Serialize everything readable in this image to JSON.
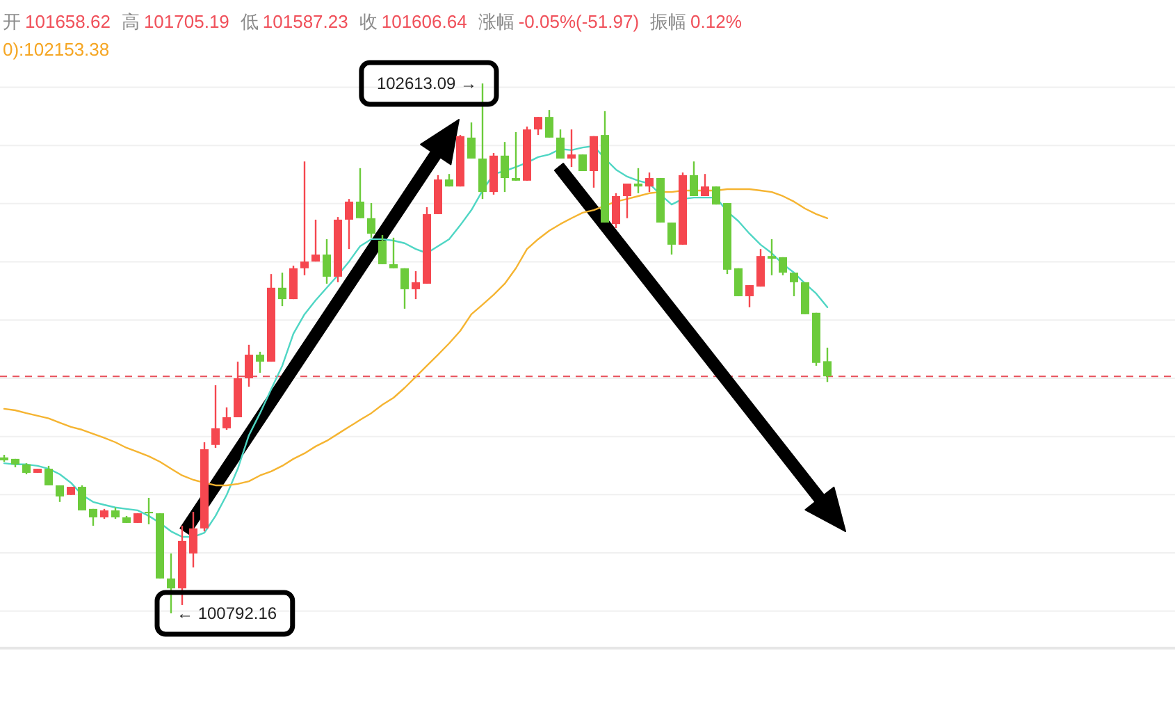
{
  "chart_data": {
    "type": "candlestick",
    "categories": [
      null,
      null,
      null,
      null,
      null,
      null,
      null,
      null,
      null,
      null,
      null,
      null,
      null,
      null,
      null,
      null,
      null,
      null,
      null,
      null,
      null,
      null,
      null,
      null,
      null,
      null,
      null,
      null,
      null,
      null,
      null,
      null,
      null,
      null,
      null,
      null,
      null,
      null,
      null,
      null,
      null,
      null,
      null,
      null,
      null,
      null,
      null,
      null,
      null,
      null,
      null,
      null,
      null,
      null,
      null,
      null,
      null,
      null,
      null,
      null,
      null,
      null,
      null,
      null,
      null,
      null,
      null,
      null,
      null,
      null,
      null,
      null,
      null,
      null,
      null
    ],
    "ohlc": [
      [
        101328,
        101337,
        101313,
        101318
      ],
      [
        101323,
        101323,
        101294,
        101304
      ],
      [
        101304,
        101308,
        101270,
        101275
      ],
      [
        101275,
        101289,
        101275,
        101289
      ],
      [
        101289,
        101299,
        101232,
        101232
      ],
      [
        101232,
        101232,
        101175,
        101194
      ],
      [
        101199,
        101227,
        101199,
        101227
      ],
      [
        101227,
        101232,
        101146,
        101146
      ],
      [
        101151,
        101151,
        101093,
        101122
      ],
      [
        101122,
        101151,
        101117,
        101146
      ],
      [
        101146,
        101156,
        101117,
        101122
      ],
      [
        101122,
        101127,
        101103,
        101103
      ],
      [
        101103,
        101136,
        101103,
        101136
      ],
      [
        101141,
        101189,
        101098,
        101136
      ],
      [
        101136,
        101136,
        100912,
        100912
      ],
      [
        100912,
        100998,
        100792.16,
        100878
      ],
      [
        100878,
        101093,
        100821,
        101041
      ],
      [
        100998,
        101141,
        100950,
        101084
      ],
      [
        101084,
        101380,
        101074,
        101356
      ],
      [
        101371,
        101576,
        101361,
        101428
      ],
      [
        101428,
        101500,
        101423,
        101466
      ],
      [
        101466,
        101657,
        101466,
        101600
      ],
      [
        101600,
        101715,
        101571,
        101681
      ],
      [
        101681,
        101691,
        101619,
        101657
      ],
      [
        101657,
        101958,
        101657,
        101911
      ],
      [
        101911,
        101963,
        101848,
        101872
      ],
      [
        101872,
        101987,
        101872,
        101978
      ],
      [
        101978,
        102345,
        101954,
        102001
      ],
      [
        102001,
        102145,
        102001,
        102025
      ],
      [
        102025,
        102078,
        101925,
        101949
      ],
      [
        101949,
        102154,
        101930,
        102145
      ],
      [
        102145,
        102216,
        102044,
        102207
      ],
      [
        102207,
        102322,
        102150,
        102150
      ],
      [
        102150,
        102202,
        102083,
        102097
      ],
      [
        102073,
        102092,
        101992,
        101992
      ],
      [
        101992,
        102083,
        101978,
        101978
      ],
      [
        101978,
        101978,
        101839,
        101906
      ],
      [
        101906,
        101968,
        101872,
        101930
      ],
      [
        101925,
        102188,
        101925,
        102164
      ],
      [
        102164,
        102298,
        102164,
        102283
      ],
      [
        102283,
        102302,
        102259,
        102259
      ],
      [
        102259,
        102436,
        102259,
        102432
      ],
      [
        102427,
        102479,
        102355,
        102355
      ],
      [
        102355,
        102613.09,
        102216,
        102240
      ],
      [
        102240,
        102374,
        102231,
        102365
      ],
      [
        102365,
        102412,
        102240,
        102288
      ],
      [
        102288,
        102446,
        102279,
        102279
      ],
      [
        102279,
        102465,
        102279,
        102455
      ],
      [
        102455,
        102498,
        102436,
        102498
      ],
      [
        102498,
        102522,
        102427,
        102427
      ],
      [
        102427,
        102455,
        102355,
        102355
      ],
      [
        102355,
        102455,
        102326,
        102369
      ],
      [
        102369,
        102369,
        102312,
        102312
      ],
      [
        102312,
        102432,
        102255,
        102432
      ],
      [
        102436,
        102518,
        102135,
        102135
      ],
      [
        102130,
        102236,
        102116,
        102226
      ],
      [
        102226,
        102269,
        102150,
        102269
      ],
      [
        102269,
        102322,
        102236,
        102259
      ],
      [
        102259,
        102307,
        102240,
        102288
      ],
      [
        102288,
        102288,
        102135,
        102135
      ],
      [
        102135,
        102135,
        102025,
        102059
      ],
      [
        102059,
        102307,
        102059,
        102298
      ],
      [
        102298,
        102345,
        102226,
        102226
      ],
      [
        102226,
        102302,
        102226,
        102259
      ],
      [
        102259,
        102259,
        102197,
        102197
      ],
      [
        102202,
        102202,
        101958,
        101973
      ],
      [
        101978,
        101978,
        101882,
        101882
      ],
      [
        101882,
        101920,
        101844,
        101920
      ],
      [
        101915,
        102044,
        101915,
        102020
      ],
      [
        102020,
        102078,
        101954,
        102011
      ],
      [
        102016,
        102016,
        101954,
        101963
      ],
      [
        101963,
        101963,
        101882,
        101930
      ],
      [
        101930,
        101930,
        101820,
        101820
      ],
      [
        101825,
        101825,
        101643,
        101653
      ],
      [
        101658.62,
        101705.19,
        101587.23,
        101606.64
      ]
    ],
    "colors": [
      "#6ccb3b",
      "#6ccb3b",
      "#6ccb3b",
      "#f5474f",
      "#6ccb3b",
      "#6ccb3b",
      "#f5474f",
      "#6ccb3b",
      "#6ccb3b",
      "#f5474f",
      "#6ccb3b",
      "#6ccb3b",
      "#f5474f",
      "#6ccb3b",
      "#6ccb3b",
      "#6ccb3b",
      "#f5474f",
      "#f5474f",
      "#f5474f",
      "#f5474f",
      "#f5474f",
      "#f5474f",
      "#f5474f",
      "#6ccb3b",
      "#f5474f",
      "#6ccb3b",
      "#f5474f",
      "#f5474f",
      "#f5474f",
      "#6ccb3b",
      "#f5474f",
      "#f5474f",
      "#6ccb3b",
      "#6ccb3b",
      "#6ccb3b",
      "#6ccb3b",
      "#6ccb3b",
      "#f5474f",
      "#f5474f",
      "#f5474f",
      "#6ccb3b",
      "#f5474f",
      "#6ccb3b",
      "#6ccb3b",
      "#f5474f",
      "#6ccb3b",
      "#6ccb3b",
      "#f5474f",
      "#f5474f",
      "#6ccb3b",
      "#6ccb3b",
      "#f5474f",
      "#6ccb3b",
      "#f5474f",
      "#6ccb3b",
      "#f5474f",
      "#f5474f",
      "#6ccb3b",
      "#f5474f",
      "#6ccb3b",
      "#6ccb3b",
      "#f5474f",
      "#6ccb3b",
      "#f5474f",
      "#6ccb3b",
      "#6ccb3b",
      "#6ccb3b",
      "#f5474f",
      "#f5474f",
      "#6ccb3b",
      "#6ccb3b",
      "#6ccb3b",
      "#6ccb3b",
      "#6ccb3b",
      "#6ccb3b"
    ],
    "series": [
      {
        "type": "line",
        "color": "#4fd6c4",
        "values": [
          101308,
          101304,
          101304,
          101299,
          101289,
          101270,
          101241,
          101199,
          101175,
          101165,
          101156,
          101151,
          101146,
          101127,
          101103,
          101074,
          101055,
          101055,
          101069,
          101127,
          101199,
          101289,
          101404,
          101480,
          101562,
          101643,
          101753,
          101820,
          101868,
          101911,
          101954,
          102001,
          102054,
          102078,
          102078,
          102073,
          102064,
          102044,
          102030,
          102054,
          102078,
          102126,
          102178,
          102245,
          102302,
          102312,
          102326,
          102341,
          102360,
          102369,
          102388,
          102384,
          102393,
          102398,
          102355,
          102317,
          102293,
          102279,
          102269,
          102231,
          102197,
          102216,
          102221,
          102221,
          102221,
          102173,
          102140,
          102097,
          102059,
          102030,
          101992,
          101963,
          101925,
          101891,
          101844
        ]
      },
      {
        "type": "line",
        "color": "#f5b431",
        "values": [
          101495,
          101490,
          101480,
          101471,
          101462,
          101447,
          101433,
          101423,
          101409,
          101395,
          101380,
          101361,
          101347,
          101332,
          101313,
          101289,
          101266,
          101251,
          101241,
          101232,
          101232,
          101237,
          101246,
          101266,
          101280,
          101299,
          101323,
          101342,
          101366,
          101385,
          101409,
          101433,
          101457,
          101480,
          101509,
          101533,
          101567,
          101605,
          101643,
          101681,
          101720,
          101763,
          101820,
          101853,
          101887,
          101925,
          101978,
          102044,
          102078,
          102107,
          102130,
          102150,
          102169,
          102178,
          102193,
          102207,
          102216,
          102226,
          102236,
          102240,
          102240,
          102245,
          102245,
          102245,
          102245,
          102250,
          102250,
          102250,
          102245,
          102240,
          102226,
          102207,
          102183,
          102164,
          102150
        ]
      }
    ],
    "yticks": [
      {
        "value": 100800,
        "label": null
      },
      {
        "value": 101000,
        "label": null
      },
      {
        "value": 101200,
        "label": null
      },
      {
        "value": 101400,
        "label": null
      },
      {
        "value": 101600,
        "label": null
      },
      {
        "value": 101800,
        "label": null
      },
      {
        "value": 102000,
        "label": null
      },
      {
        "value": 102200,
        "label": null
      },
      {
        "value": 102400,
        "label": null
      },
      {
        "value": 102600,
        "label": null
      }
    ],
    "grid": "y",
    "ref_lines": [
      {
        "axis": "y",
        "value": 101606.64,
        "color": "#e8505b",
        "line_style": "dashed"
      }
    ],
    "annotations": [
      "开",
      "101658.62",
      "高",
      "101705.19",
      "低",
      "101587.23",
      "收",
      "101606.64",
      "涨幅",
      "-0.05%(-51.97)",
      "振幅",
      "0.12%",
      "0):102153.38",
      "102613.09 →",
      "← 100792.16"
    ]
  }
}
